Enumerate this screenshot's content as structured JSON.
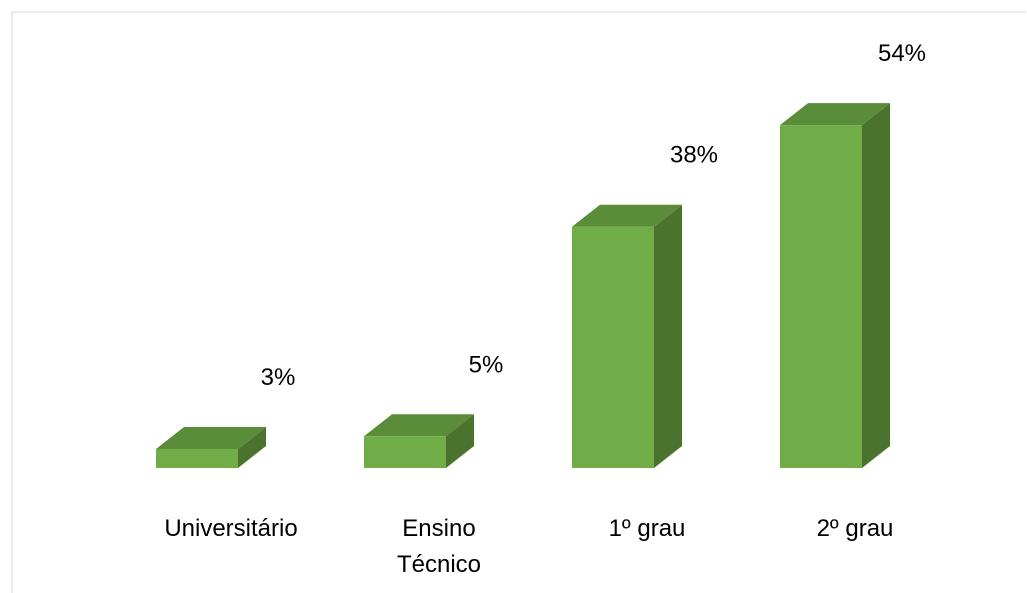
{
  "chart_data": {
    "type": "bar",
    "categories": [
      "Universitário",
      "Ensino Técnico",
      "1º grau",
      "2º grau"
    ],
    "category_lines": [
      [
        "Universitário"
      ],
      [
        "Ensino",
        "Técnico"
      ],
      [
        "1º grau"
      ],
      [
        "2º grau"
      ]
    ],
    "values": [
      3,
      5,
      38,
      54
    ],
    "data_labels": [
      "3%",
      "5%",
      "38%",
      "54%"
    ],
    "unit": "%",
    "title": "",
    "xlabel": "",
    "ylabel": "",
    "ylim": [
      0,
      54
    ],
    "grid": false,
    "legend": "none",
    "style": "3d-column"
  },
  "colors": {
    "bar_front": "#70ad47",
    "bar_top": "#5a8c39",
    "bar_side": "#4a732d",
    "frame": "#d9d9d9"
  }
}
